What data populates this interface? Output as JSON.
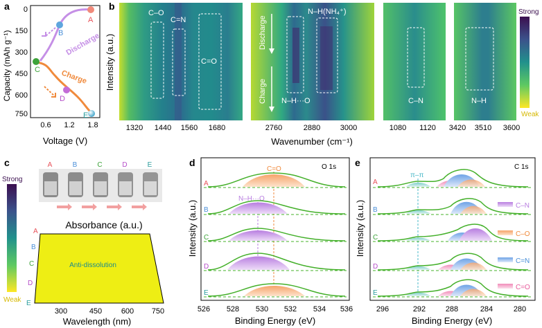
{
  "panels": {
    "a": {
      "label": "a",
      "ylabel": "Capacity (mAh g⁻¹)",
      "xlabel": "Voltage (V)",
      "yticks": [
        "0",
        "150",
        "300",
        "450",
        "600",
        "750"
      ],
      "xticks": [
        "0.6",
        "1.2",
        "1.8"
      ],
      "points": [
        "A",
        "B",
        "C",
        "D",
        "E"
      ],
      "discharge_label": "Discharge",
      "charge_label": "Charge"
    },
    "b": {
      "label": "b",
      "ylabel": "Intensity (a.u.)",
      "xlabel": "Wavenumber (cm⁻¹)",
      "sub1": {
        "ticks": [
          "1320",
          "1440",
          "1560",
          "1680"
        ],
        "boxes": [
          "C–O",
          "C=N",
          "C=O"
        ]
      },
      "sub2": {
        "ticks": [
          "2760",
          "2880",
          "3000"
        ],
        "top_label": "N–H(NH₄⁺)",
        "bottom_label": "N–H···O",
        "discharge": "Discharge",
        "charge": "Charge"
      },
      "sub3": {
        "ticks": [
          "1080",
          "1120"
        ],
        "box": "C–N"
      },
      "sub4": {
        "ticks": [
          "3420",
          "3510",
          "3600"
        ],
        "box": "N–H"
      },
      "colorbar": {
        "top": "Strong",
        "bottom": "Weak"
      }
    },
    "c": {
      "label": "c",
      "vials": [
        "A",
        "B",
        "C",
        "D",
        "E"
      ],
      "colorbar_top": "Strong",
      "colorbar_bottom": "Weak",
      "title": "Absorbance (a.u.)",
      "row_labels": [
        "A",
        "B",
        "C",
        "D",
        "E"
      ],
      "inner_text": "Anti-dissolution",
      "xticks": [
        "300",
        "450",
        "600",
        "750"
      ],
      "xlabel": "Wavelength (nm)"
    },
    "d": {
      "label": "d",
      "corner": "O 1s",
      "ylabel": "Intensity (a.u.)",
      "xlabel": "Binding Energy (eV)",
      "xticks": [
        "526",
        "528",
        "530",
        "532",
        "534",
        "536"
      ],
      "rows": [
        "A",
        "B",
        "C",
        "D",
        "E"
      ],
      "peak_co": "C=O",
      "peak_nho": "N–H···O"
    },
    "e": {
      "label": "e",
      "corner": "C 1s",
      "ylabel": "Intensity (a.u.)",
      "xlabel": "Binding Energy (eV)",
      "xticks": [
        "296",
        "292",
        "288",
        "284",
        "280"
      ],
      "rows": [
        "A",
        "B",
        "C",
        "D",
        "E"
      ],
      "pipi": "π–π",
      "legend": [
        "C–N",
        "C–O",
        "C=N",
        "C=O"
      ]
    }
  },
  "colors": {
    "discharge": "#c58fe6",
    "charge": "#f08a3c",
    "curve": "#44b02a",
    "label_A": "#e8525a",
    "label_B": "#4a8fd8",
    "label_C": "#3da33a",
    "label_D": "#b44cc8",
    "label_E": "#2a9c9c"
  }
}
